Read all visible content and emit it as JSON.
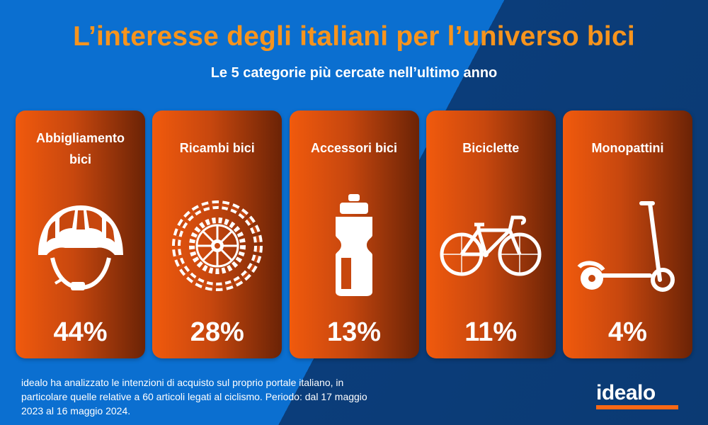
{
  "title": "L’interesse degli italiani per l’universo bici",
  "subtitle": "Le 5 categorie più cercate nell’ultimo anno",
  "cards": [
    {
      "label_line1": "Abbigliamento",
      "label_line2": "bici",
      "value": "44%",
      "icon": "helmet-icon"
    },
    {
      "label": "Ricambi bici",
      "value": "28%",
      "icon": "chain-gear-icon"
    },
    {
      "label": "Accessori bici",
      "value": "13%",
      "icon": "water-bottle-icon"
    },
    {
      "label": "Biciclette",
      "value": "11%",
      "icon": "bicycle-icon"
    },
    {
      "label": "Monopattini",
      "value": "4%",
      "icon": "scooter-icon"
    }
  ],
  "footnote": "idealo ha analizzato le intenzioni di acquisto sul proprio portale italiano, in particolare quelle relative a 60 articoli legati al ciclismo. Periodo: dal 17 maggio 2023 al 16 maggio 2024.",
  "logo": "idealo",
  "colors": {
    "title": "#f7941d",
    "card": "#f15a0d",
    "background_left": "#0b6fd0",
    "background_right": "#0b3a73",
    "logo_bar": "#f96815"
  }
}
